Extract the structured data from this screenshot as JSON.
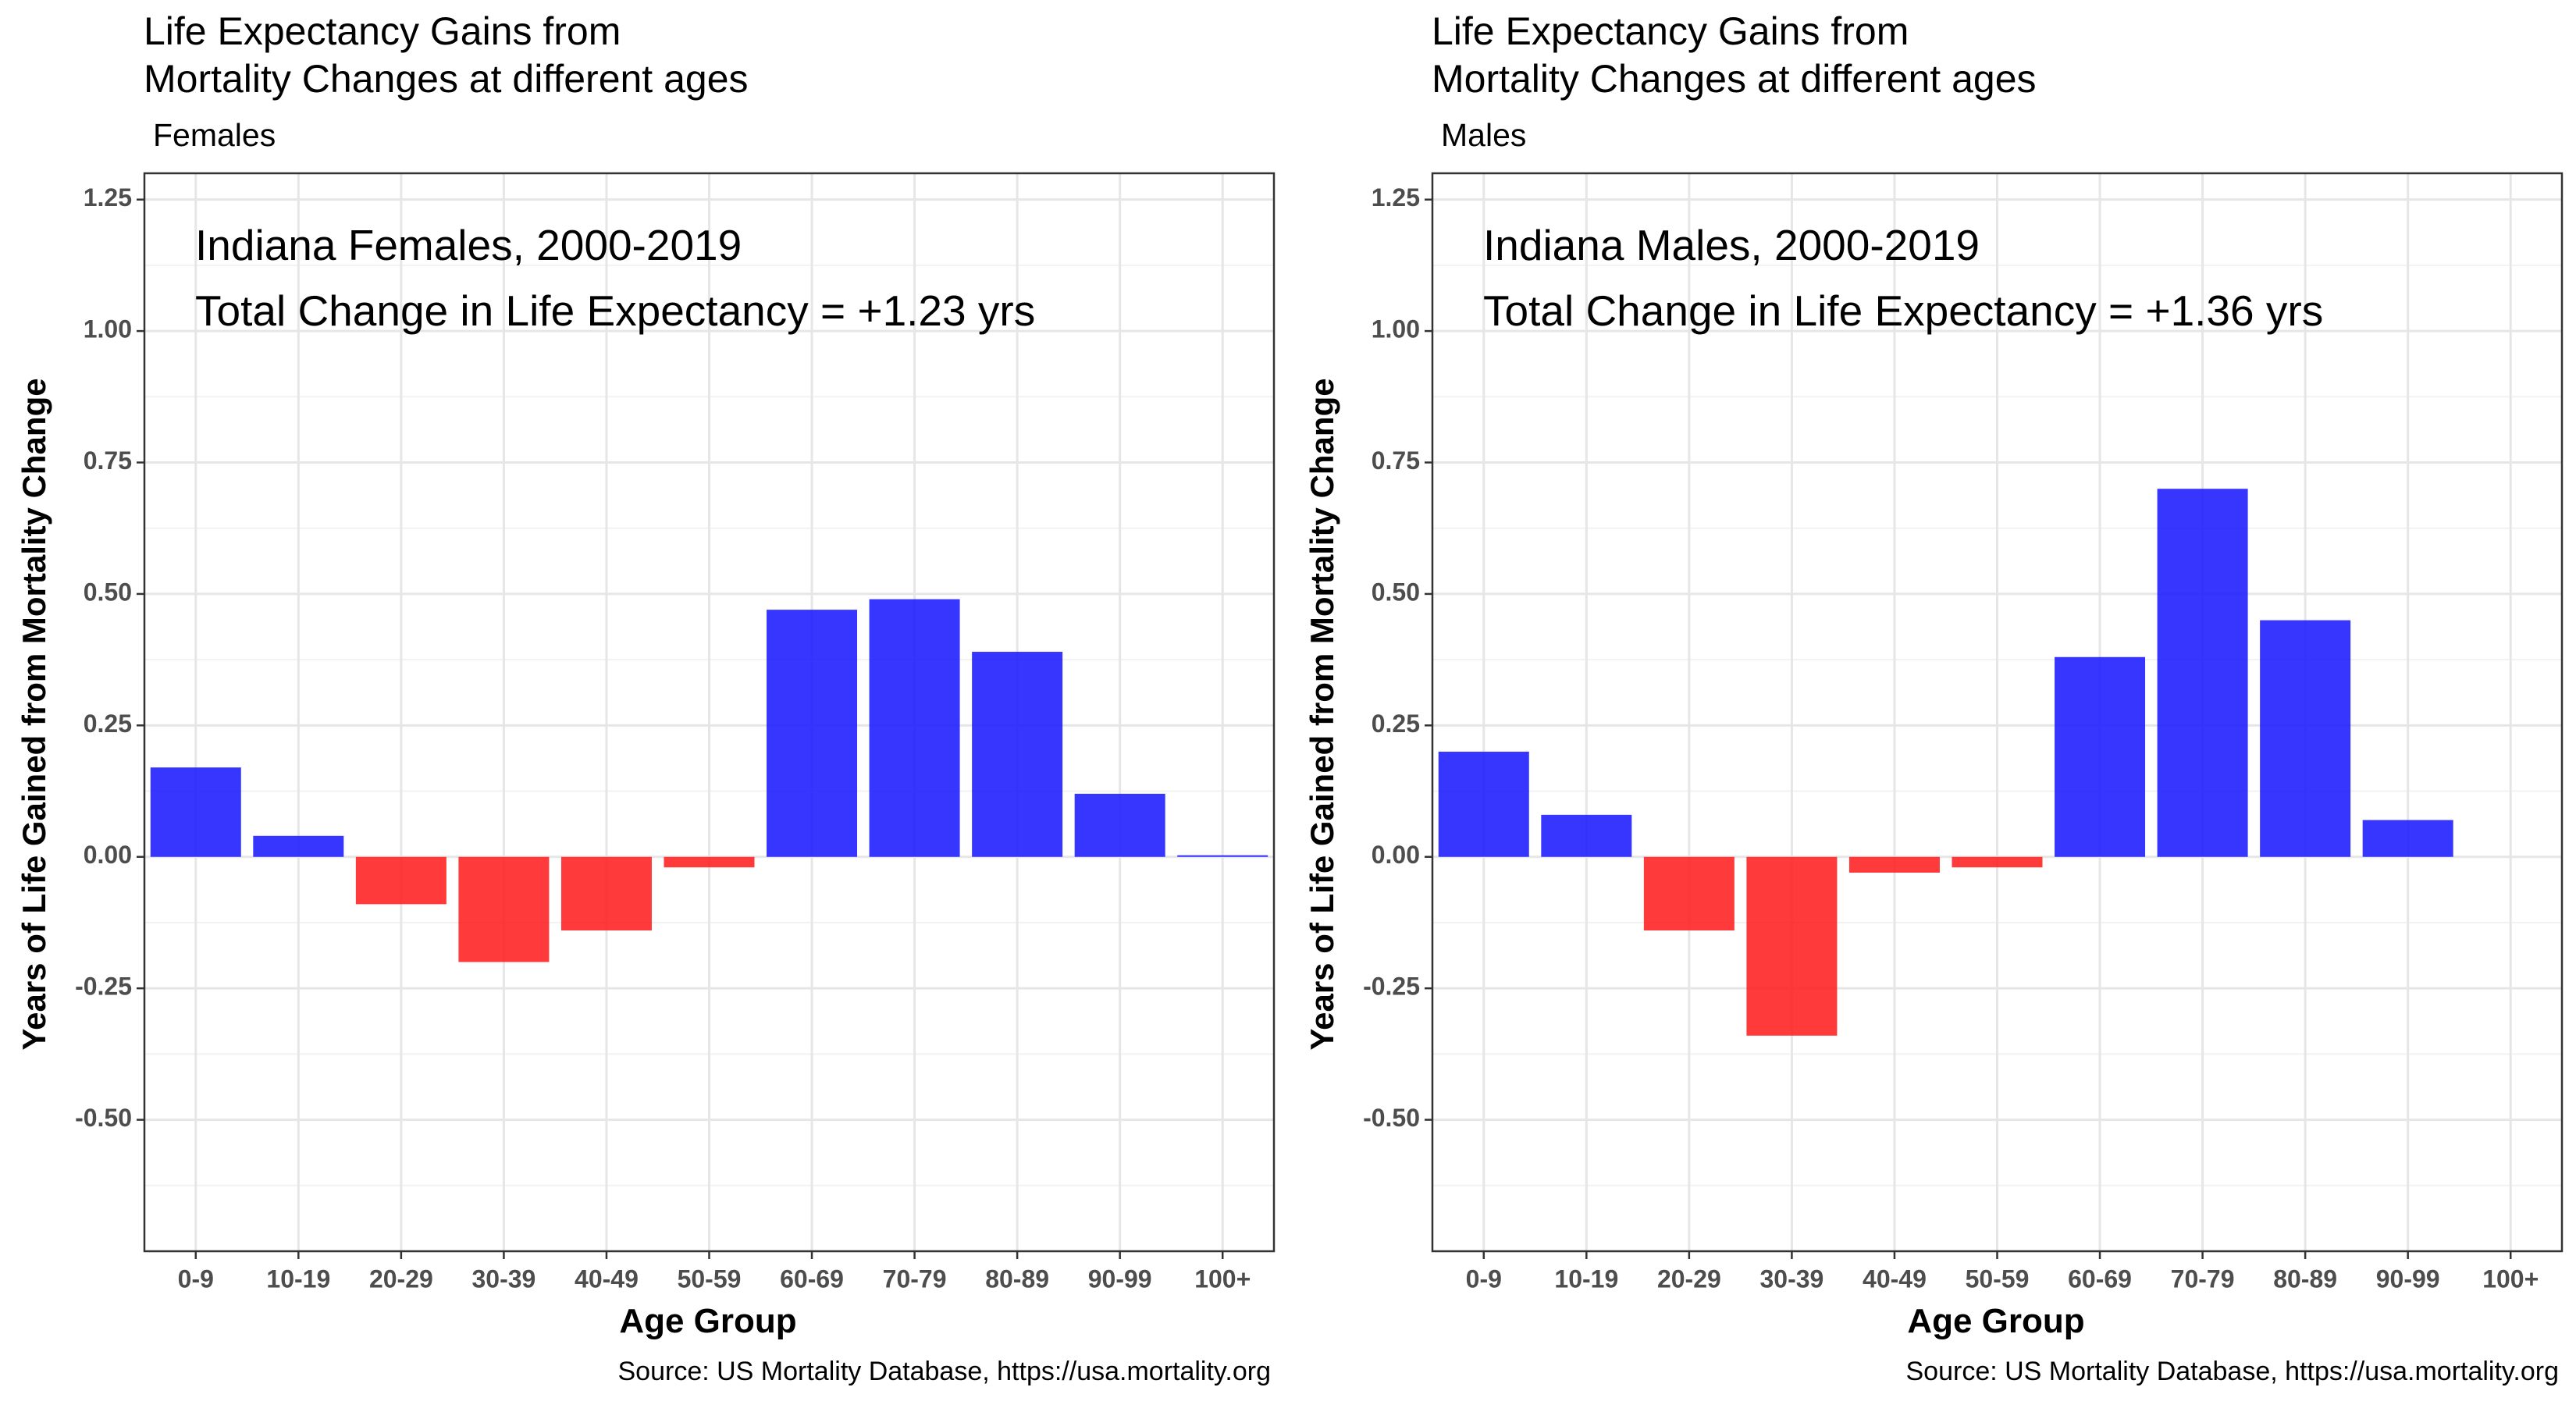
{
  "chart_data": [
    {
      "type": "bar",
      "title": "Life Expectancy Gains from\nMortality Changes at different ages",
      "subtitle": "Females",
      "annotations": [
        "Indiana Females, 2000-2019",
        "Total Change in Life Expectancy = +1.23 yrs"
      ],
      "xlabel": "Age Group",
      "ylabel": "Years of Life Gained from Mortality Change",
      "caption": "Source: US Mortality Database, https://usa.mortality.org",
      "categories": [
        "0-9",
        "10-19",
        "20-29",
        "30-39",
        "40-49",
        "50-59",
        "60-69",
        "70-79",
        "80-89",
        "90-99",
        "100+"
      ],
      "values": [
        0.17,
        0.04,
        -0.09,
        -0.2,
        -0.14,
        -0.02,
        0.47,
        0.49,
        0.39,
        0.12,
        0.003
      ],
      "ylim": [
        -0.75,
        1.3
      ],
      "yticks": [
        1.25,
        1.0,
        0.75,
        0.5,
        0.25,
        0.0,
        -0.25,
        -0.5
      ],
      "ytick_labels": [
        "1.25",
        "1.00",
        "0.75",
        "0.50",
        "0.25",
        "0.00",
        "-0.25",
        "-0.50"
      ],
      "positive_color": "#1515ff",
      "negative_color": "#ff1a1a",
      "grid": true,
      "legend": "none"
    },
    {
      "type": "bar",
      "title": "Life Expectancy Gains from\nMortality Changes at different ages",
      "subtitle": "Males",
      "annotations": [
        "Indiana Males, 2000-2019",
        "Total Change in Life Expectancy = +1.36 yrs"
      ],
      "xlabel": "Age Group",
      "ylabel": "Years of Life Gained from Mortality Change",
      "caption": "Source: US Mortality Database, https://usa.mortality.org",
      "categories": [
        "0-9",
        "10-19",
        "20-29",
        "30-39",
        "40-49",
        "50-59",
        "60-69",
        "70-79",
        "80-89",
        "90-99",
        "100+"
      ],
      "values": [
        0.2,
        0.08,
        -0.14,
        -0.34,
        -0.03,
        -0.02,
        0.38,
        0.7,
        0.45,
        0.07,
        0.0
      ],
      "ylim": [
        -0.75,
        1.3
      ],
      "yticks": [
        1.25,
        1.0,
        0.75,
        0.5,
        0.25,
        0.0,
        -0.25,
        -0.5
      ],
      "ytick_labels": [
        "1.25",
        "1.00",
        "0.75",
        "0.50",
        "0.25",
        "0.00",
        "-0.25",
        "-0.50"
      ],
      "positive_color": "#1515ff",
      "negative_color": "#ff1a1a",
      "grid": true,
      "legend": "none"
    }
  ]
}
